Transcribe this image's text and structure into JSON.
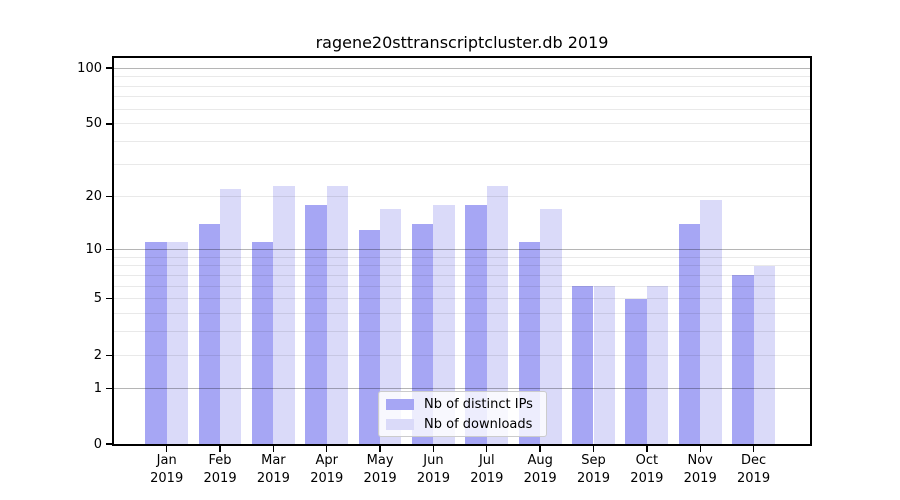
{
  "chart_data": {
    "type": "bar",
    "title": "ragene20sttranscriptcluster.db 2019",
    "categories": [
      "Jan",
      "Feb",
      "Mar",
      "Apr",
      "May",
      "Jun",
      "Jul",
      "Aug",
      "Sep",
      "Oct",
      "Nov",
      "Dec"
    ],
    "year_label": "2019",
    "series": [
      {
        "name": "Nb of distinct IPs",
        "color": "#a6a6f4",
        "values": [
          11,
          14,
          11,
          18,
          13,
          14,
          18,
          11,
          6,
          5,
          14,
          7
        ]
      },
      {
        "name": "Nb of downloads",
        "color": "#dadaf9",
        "values": [
          11,
          22,
          23,
          23,
          17,
          18,
          23,
          17,
          6,
          6,
          19,
          8
        ]
      }
    ],
    "yscale": "log10(1+value)",
    "ylim": [
      0,
      100
    ],
    "yticks": [
      0,
      1,
      2,
      5,
      10,
      20,
      50,
      100
    ],
    "major_gridlines": [
      1,
      10,
      100
    ],
    "minor_gridlines": [
      2,
      3,
      4,
      5,
      6,
      7,
      8,
      9,
      20,
      30,
      40,
      50,
      60,
      70,
      80,
      90
    ],
    "grid": true,
    "legend_position": "lower center",
    "style": {
      "grid_major": "#b5b5b5",
      "grid_minor": "#e9e9e9",
      "axis_color": "#000000",
      "text_color": "#000000",
      "background": "#ffffff",
      "legend_border": "#cccccc"
    }
  }
}
